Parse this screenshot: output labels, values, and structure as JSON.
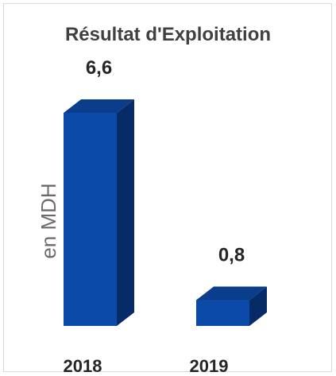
{
  "chart_data": {
    "type": "bar",
    "title": "Résultat d'Exploitation",
    "ylabel": "en MDH",
    "xlabel": "",
    "categories": [
      "2018",
      "2019"
    ],
    "values": [
      6.6,
      0.8
    ],
    "data_labels": [
      "6,6",
      "0,8"
    ],
    "ylim": [
      0,
      6.6
    ],
    "grid": false,
    "legend": "none",
    "style": "3d-column",
    "colors": {
      "front": "#0b4aa8",
      "side": "#062b66",
      "top": "#0a3e8c"
    }
  }
}
